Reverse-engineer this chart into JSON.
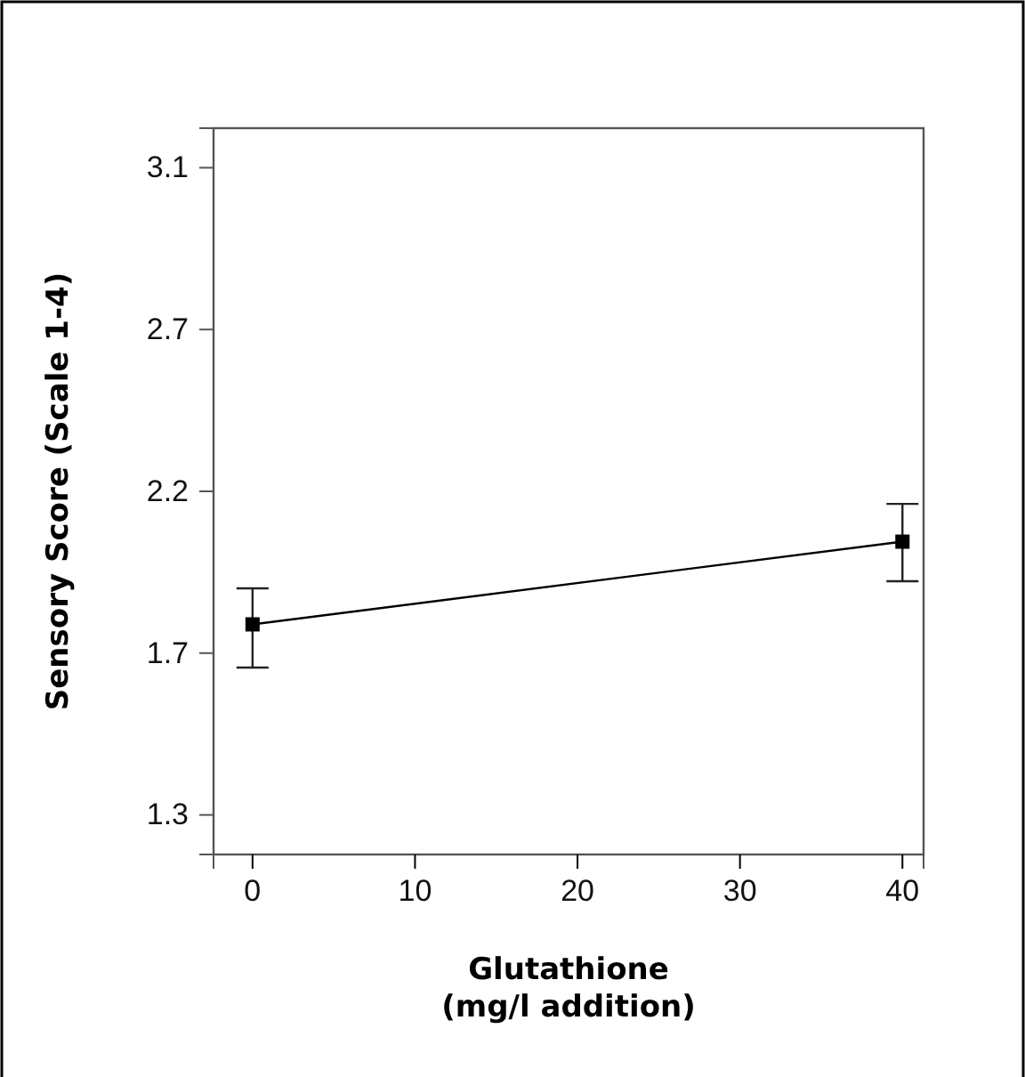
{
  "chart_data": {
    "type": "line",
    "xlabel": "Glutathione\n(mg/l addition)",
    "ylabel": "Sensory Score (Scale 1-4)",
    "x": [
      0,
      40
    ],
    "series": [
      {
        "color": "#000000",
        "values": [
          1.83,
          2.06
        ],
        "errors": [
          [
            1.71,
            1.93
          ],
          [
            1.95,
            2.165
          ]
        ]
      }
    ],
    "xlim": [
      -2.4,
      41.3
    ],
    "xticks": [
      0,
      10,
      20,
      30,
      40
    ],
    "ylim": [
      1.19,
      3.21
    ],
    "yticks": [
      {
        "value": 1.3,
        "label": "1.3"
      },
      {
        "value": 1.75,
        "label": "1.7"
      },
      {
        "value": 2.2,
        "label": "2.2"
      },
      {
        "value": 2.65,
        "label": "2.7"
      },
      {
        "value": 3.1,
        "label": "3.1"
      }
    ],
    "marker": "square",
    "line_style": "solid",
    "grid": false
  }
}
